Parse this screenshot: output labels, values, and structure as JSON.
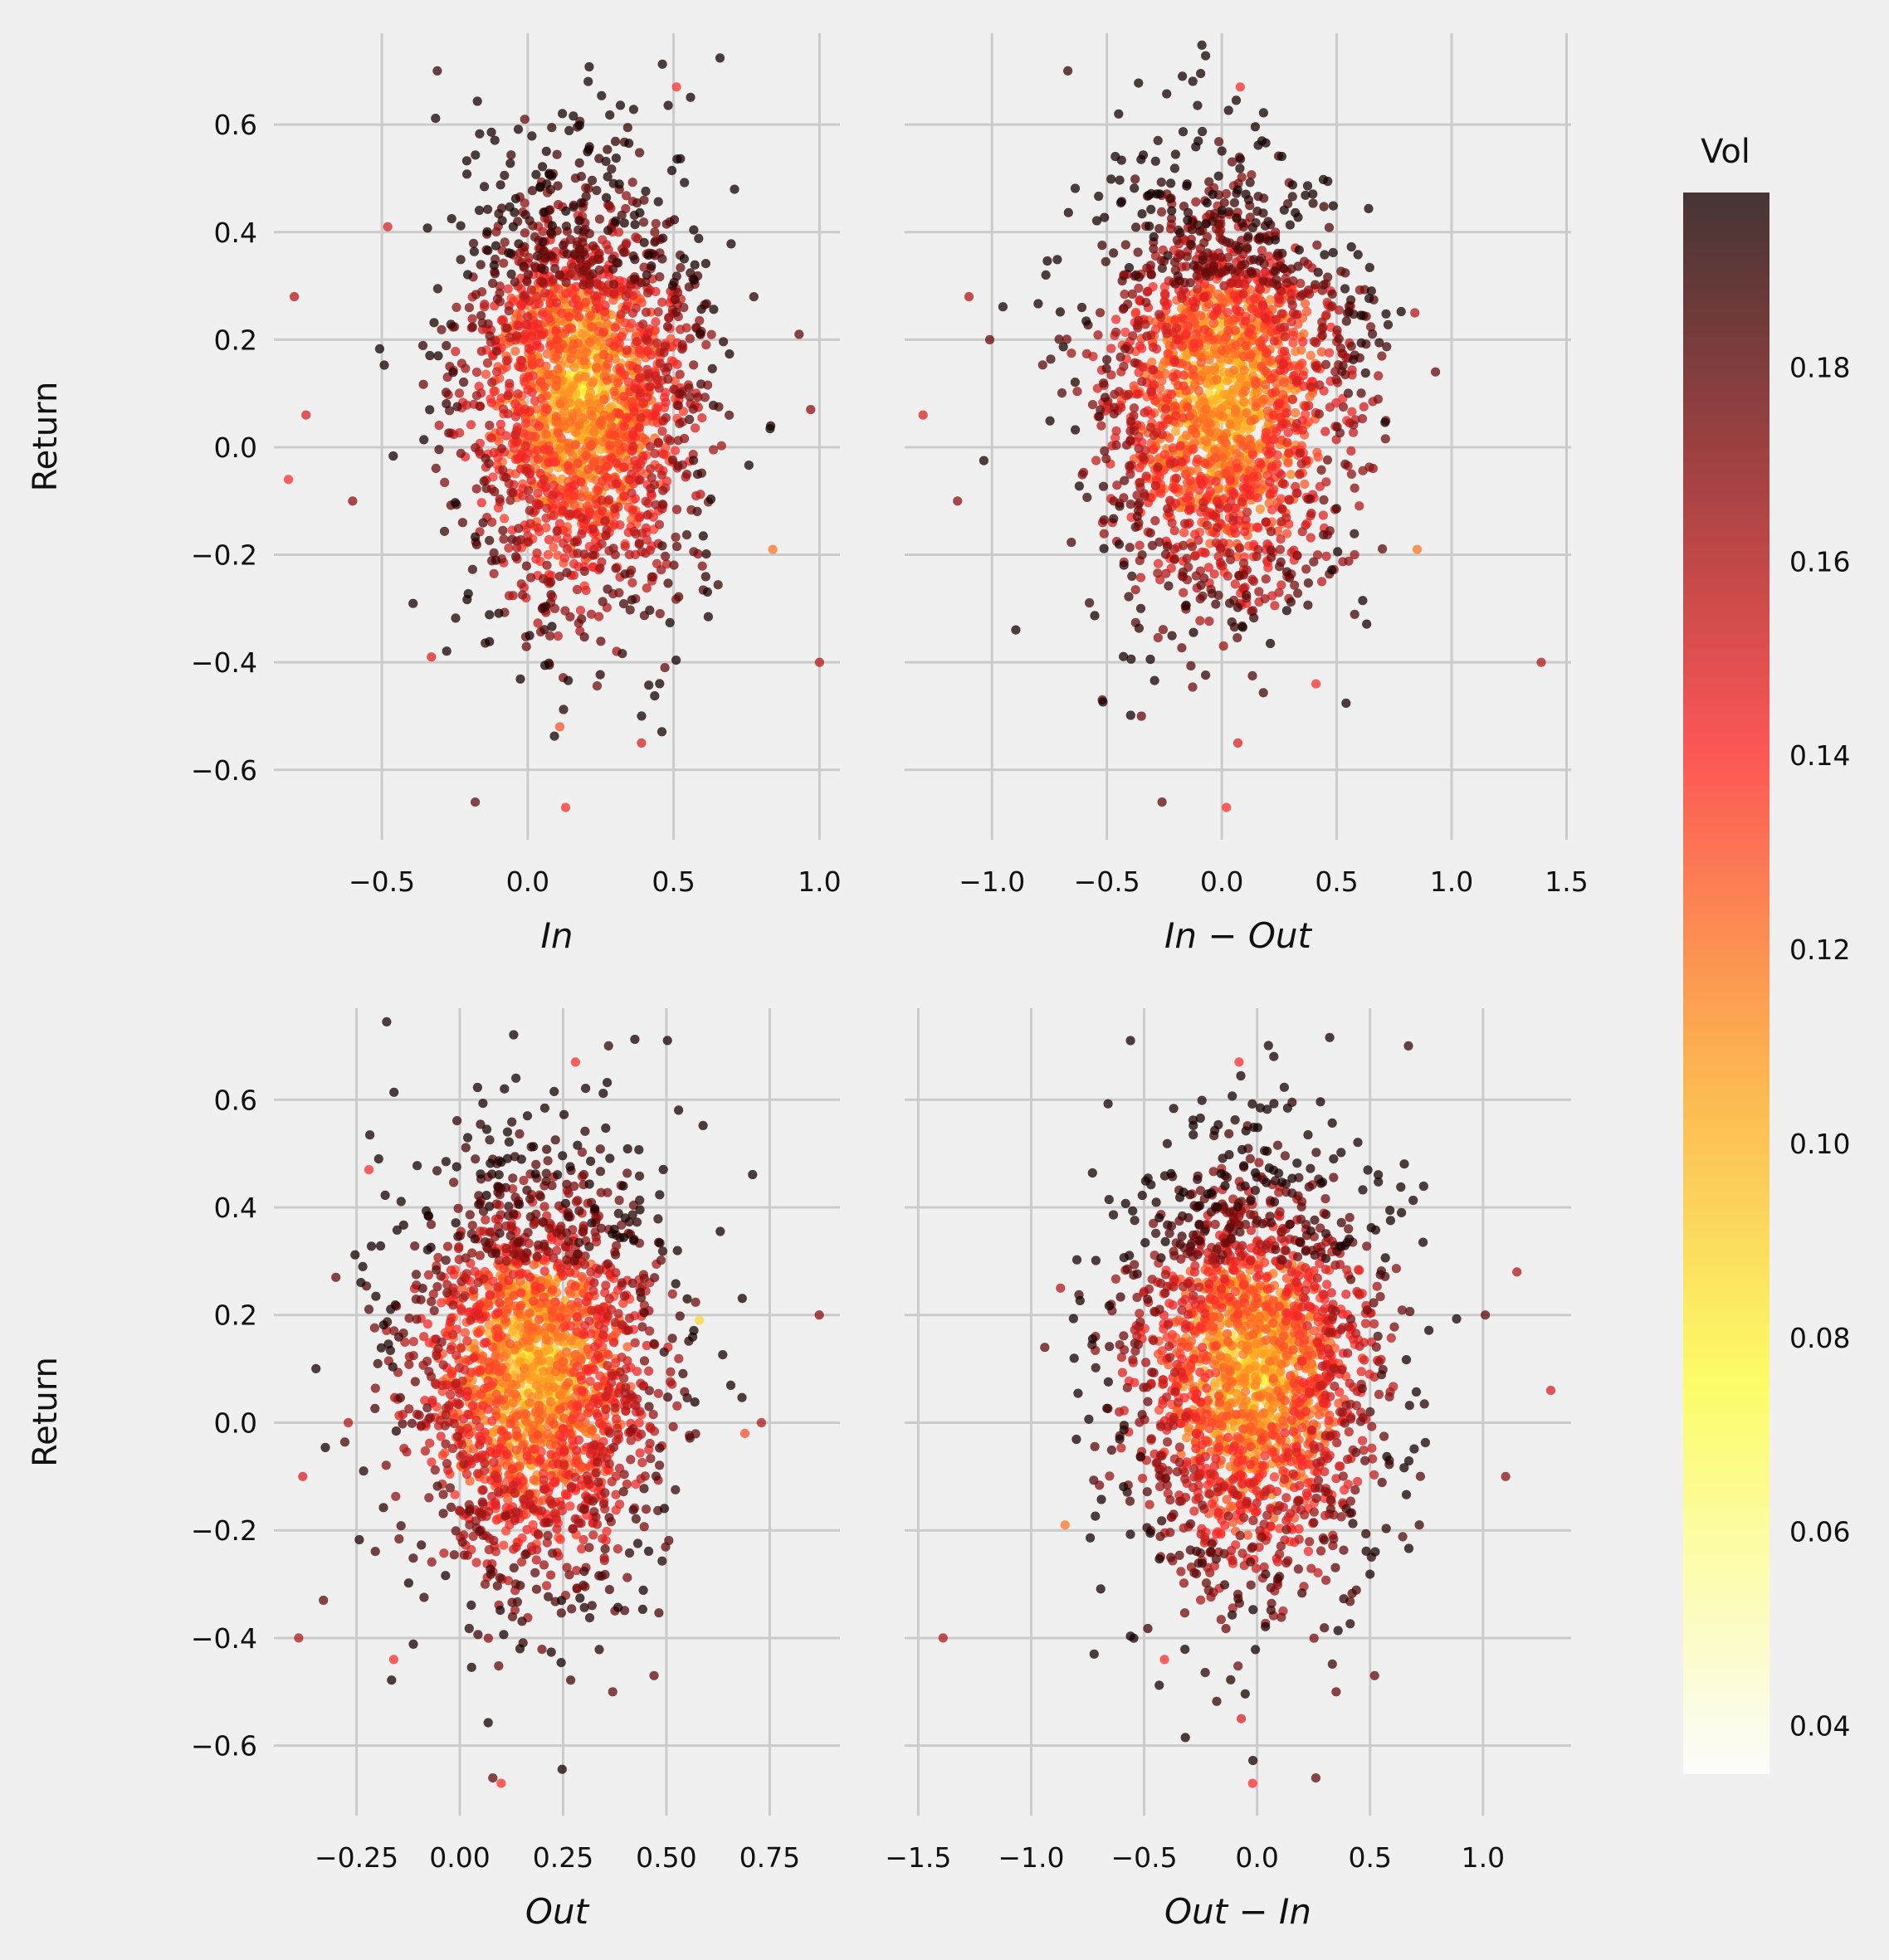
{
  "chart_data": [
    {
      "type": "scatter",
      "panel": "top-left",
      "xlabel": "In",
      "ylabel": "Return",
      "xticks": [
        -0.5,
        0.0,
        0.5,
        1.0
      ],
      "xticklabels": [
        "−0.5",
        "0.0",
        "0.5",
        "1.0"
      ],
      "xlim": [
        -0.87,
        1.07
      ],
      "yticks": [
        -0.6,
        -0.4,
        -0.2,
        0.0,
        0.2,
        0.4,
        0.6
      ],
      "yticklabels": [
        "−0.6",
        "−0.4",
        "−0.2",
        "0.0",
        "0.2",
        "0.4",
        "0.6"
      ],
      "ylim": [
        -0.73,
        0.77
      ],
      "cloud": {
        "n": 2300,
        "x_mean": 0.18,
        "x_sd": 0.2,
        "y_mean": 0.1,
        "y_sd": 0.2,
        "y_coupling": 0.0
      },
      "points": [
        {
          "x": -0.8,
          "y": 0.28,
          "vol": 0.16
        },
        {
          "x": -0.82,
          "y": -0.06,
          "vol": 0.14
        },
        {
          "x": -0.76,
          "y": 0.06,
          "vol": 0.15
        },
        {
          "x": -0.6,
          "y": -0.1,
          "vol": 0.17
        },
        {
          "x": -0.31,
          "y": 0.7,
          "vol": 0.19
        },
        {
          "x": 0.51,
          "y": 0.67,
          "vol": 0.14
        },
        {
          "x": -0.18,
          "y": -0.66,
          "vol": 0.18
        },
        {
          "x": 0.13,
          "y": -0.67,
          "vol": 0.14
        },
        {
          "x": 1.0,
          "y": -0.4,
          "vol": 0.16
        },
        {
          "x": 0.93,
          "y": 0.21,
          "vol": 0.18
        },
        {
          "x": 0.97,
          "y": 0.07,
          "vol": 0.17
        },
        {
          "x": 0.84,
          "y": -0.19,
          "vol": 0.12
        },
        {
          "x": 0.39,
          "y": -0.55,
          "vol": 0.15
        },
        {
          "x": 0.11,
          "y": -0.52,
          "vol": 0.13
        },
        {
          "x": -0.01,
          "y": 0.61,
          "vol": 0.18
        },
        {
          "x": -0.48,
          "y": 0.41,
          "vol": 0.15
        },
        {
          "x": -0.33,
          "y": -0.39,
          "vol": 0.15
        },
        {
          "x": 0.47,
          "y": -0.41,
          "vol": 0.18
        }
      ]
    },
    {
      "type": "scatter",
      "panel": "top-right",
      "xlabel": "In − Out",
      "ylabel": "",
      "xticks": [
        -1.0,
        -0.5,
        0.0,
        0.5,
        1.0,
        1.5
      ],
      "xticklabels": [
        "−1.0",
        "−0.5",
        "0.0",
        "0.5",
        "1.0",
        "1.5"
      ],
      "xlim": [
        -1.38,
        1.52
      ],
      "yticks": [
        -0.6,
        -0.4,
        -0.2,
        0.0,
        0.2,
        0.4,
        0.6
      ],
      "ylim": [
        -0.73,
        0.77
      ],
      "cloud": {
        "n": 2300,
        "x_mean": 0.02,
        "x_sd": 0.27,
        "y_mean": 0.1,
        "y_sd": 0.2,
        "y_coupling": 0.0
      },
      "points": [
        {
          "x": -1.3,
          "y": 0.06,
          "vol": 0.15
        },
        {
          "x": -1.15,
          "y": -0.1,
          "vol": 0.17
        },
        {
          "x": -1.1,
          "y": 0.28,
          "vol": 0.16
        },
        {
          "x": -1.01,
          "y": 0.2,
          "vol": 0.18
        },
        {
          "x": -0.67,
          "y": 0.7,
          "vol": 0.19
        },
        {
          "x": 0.08,
          "y": 0.67,
          "vol": 0.14
        },
        {
          "x": -0.26,
          "y": -0.66,
          "vol": 0.18
        },
        {
          "x": 0.02,
          "y": -0.67,
          "vol": 0.14
        },
        {
          "x": 1.39,
          "y": -0.4,
          "vol": 0.16
        },
        {
          "x": 0.93,
          "y": 0.14,
          "vol": 0.18
        },
        {
          "x": 0.85,
          "y": -0.19,
          "vol": 0.12
        },
        {
          "x": 0.84,
          "y": 0.25,
          "vol": 0.16
        },
        {
          "x": 0.41,
          "y": -0.44,
          "vol": 0.14
        },
        {
          "x": 0.07,
          "y": -0.55,
          "vol": 0.15
        },
        {
          "x": -0.35,
          "y": -0.5,
          "vol": 0.18
        },
        {
          "x": -0.52,
          "y": -0.47,
          "vol": 0.18
        }
      ]
    },
    {
      "type": "scatter",
      "panel": "bottom-left",
      "xlabel": "Out",
      "ylabel": "Return",
      "xticks": [
        -0.25,
        0.0,
        0.25,
        0.5,
        0.75
      ],
      "xticklabels": [
        "−0.25",
        "0.00",
        "0.25",
        "0.50",
        "0.75"
      ],
      "xlim": [
        -0.45,
        0.92
      ],
      "yticks": [
        -0.6,
        -0.4,
        -0.2,
        0.0,
        0.2,
        0.4,
        0.6
      ],
      "yticklabels": [
        "−0.6",
        "−0.4",
        "−0.2",
        "0.0",
        "0.2",
        "0.4",
        "0.6"
      ],
      "ylim": [
        -0.73,
        0.77
      ],
      "cloud": {
        "n": 2300,
        "x_mean": 0.18,
        "x_sd": 0.15,
        "y_mean": 0.1,
        "y_sd": 0.2,
        "y_coupling": 0.0
      },
      "points": [
        {
          "x": -0.39,
          "y": -0.4,
          "vol": 0.16
        },
        {
          "x": -0.38,
          "y": -0.1,
          "vol": 0.15
        },
        {
          "x": -0.33,
          "y": -0.33,
          "vol": 0.18
        },
        {
          "x": -0.3,
          "y": 0.27,
          "vol": 0.18
        },
        {
          "x": -0.27,
          "y": 0.0,
          "vol": 0.16
        },
        {
          "x": -0.22,
          "y": 0.47,
          "vol": 0.14
        },
        {
          "x": 0.36,
          "y": 0.7,
          "vol": 0.19
        },
        {
          "x": 0.28,
          "y": 0.67,
          "vol": 0.14
        },
        {
          "x": 0.08,
          "y": -0.66,
          "vol": 0.18
        },
        {
          "x": 0.1,
          "y": -0.67,
          "vol": 0.14
        },
        {
          "x": 0.87,
          "y": 0.2,
          "vol": 0.17
        },
        {
          "x": 0.73,
          "y": 0.0,
          "vol": 0.16
        },
        {
          "x": 0.69,
          "y": -0.02,
          "vol": 0.13
        },
        {
          "x": 0.58,
          "y": 0.19,
          "vol": 0.09
        },
        {
          "x": 0.47,
          "y": -0.47,
          "vol": 0.18
        },
        {
          "x": 0.37,
          "y": -0.5,
          "vol": 0.18
        },
        {
          "x": -0.16,
          "y": -0.44,
          "vol": 0.14
        }
      ]
    },
    {
      "type": "scatter",
      "panel": "bottom-right",
      "xlabel": "Out − In",
      "ylabel": "",
      "xticks": [
        -1.5,
        -1.0,
        -0.5,
        0.0,
        0.5,
        1.0
      ],
      "xticklabels": [
        "−1.5",
        "−1.0",
        "−0.5",
        "0.0",
        "0.5",
        "1.0"
      ],
      "xlim": [
        -1.56,
        1.39
      ],
      "yticks": [
        -0.6,
        -0.4,
        -0.2,
        0.0,
        0.2,
        0.4,
        0.6
      ],
      "ylim": [
        -0.73,
        0.77
      ],
      "cloud": {
        "n": 2300,
        "x_mean": -0.02,
        "x_sd": 0.27,
        "y_mean": 0.1,
        "y_sd": 0.2,
        "y_coupling": 0.0
      },
      "points": [
        {
          "x": -1.39,
          "y": -0.4,
          "vol": 0.16
        },
        {
          "x": -0.94,
          "y": 0.14,
          "vol": 0.18
        },
        {
          "x": -0.87,
          "y": 0.25,
          "vol": 0.16
        },
        {
          "x": -0.85,
          "y": -0.19,
          "vol": 0.12
        },
        {
          "x": -0.41,
          "y": -0.44,
          "vol": 0.14
        },
        {
          "x": -0.07,
          "y": -0.55,
          "vol": 0.15
        },
        {
          "x": -0.08,
          "y": 0.67,
          "vol": 0.14
        },
        {
          "x": 0.67,
          "y": 0.7,
          "vol": 0.19
        },
        {
          "x": -0.02,
          "y": -0.67,
          "vol": 0.14
        },
        {
          "x": 0.26,
          "y": -0.66,
          "vol": 0.18
        },
        {
          "x": 1.15,
          "y": 0.28,
          "vol": 0.16
        },
        {
          "x": 1.01,
          "y": 0.2,
          "vol": 0.18
        },
        {
          "x": 1.3,
          "y": 0.06,
          "vol": 0.15
        },
        {
          "x": 1.1,
          "y": -0.1,
          "vol": 0.17
        },
        {
          "x": 0.35,
          "y": -0.5,
          "vol": 0.18
        },
        {
          "x": 0.52,
          "y": -0.47,
          "vol": 0.18
        }
      ]
    }
  ],
  "colorbar": {
    "title": "Vol",
    "colormap": "hot_r",
    "range": [
      0.035,
      0.198
    ],
    "ticks": [
      0.04,
      0.06,
      0.08,
      0.1,
      0.12,
      0.14,
      0.16,
      0.18
    ],
    "ticklabels": [
      "0.04",
      "0.06",
      "0.08",
      "0.10",
      "0.12",
      "0.14",
      "0.16",
      "0.18"
    ]
  },
  "style": {
    "background": "#f0f0f0",
    "grid": "#cbcbcb",
    "marker_alpha": 0.75,
    "colormap_stops": [
      "#ffffff",
      "#ffff40",
      "#ff9a20",
      "#ff2a2a",
      "#8a1010",
      "#160000"
    ]
  }
}
